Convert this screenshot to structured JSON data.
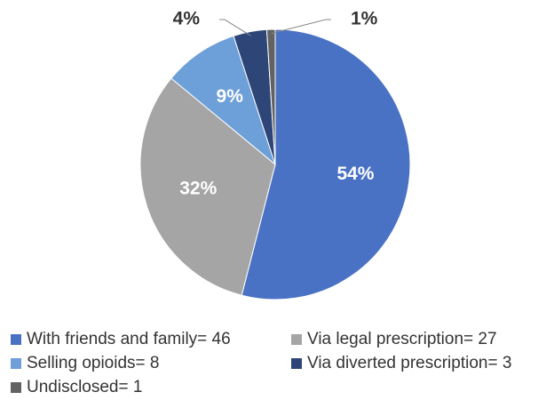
{
  "chart_data": {
    "type": "pie",
    "categories": [
      "With friends and family= 46",
      "Via legal prescription= 27",
      "Selling opioids= 8",
      "Via diverted prescription= 3",
      "Undisclosed= 1"
    ],
    "values": [
      54,
      32,
      9,
      4,
      1
    ],
    "value_labels": [
      "54%",
      "32%",
      "9%",
      "4%",
      "1%"
    ],
    "colors": [
      "#4a72c4",
      "#a5a5a5",
      "#6d9fd8",
      "#2e4677",
      "#626262"
    ]
  }
}
